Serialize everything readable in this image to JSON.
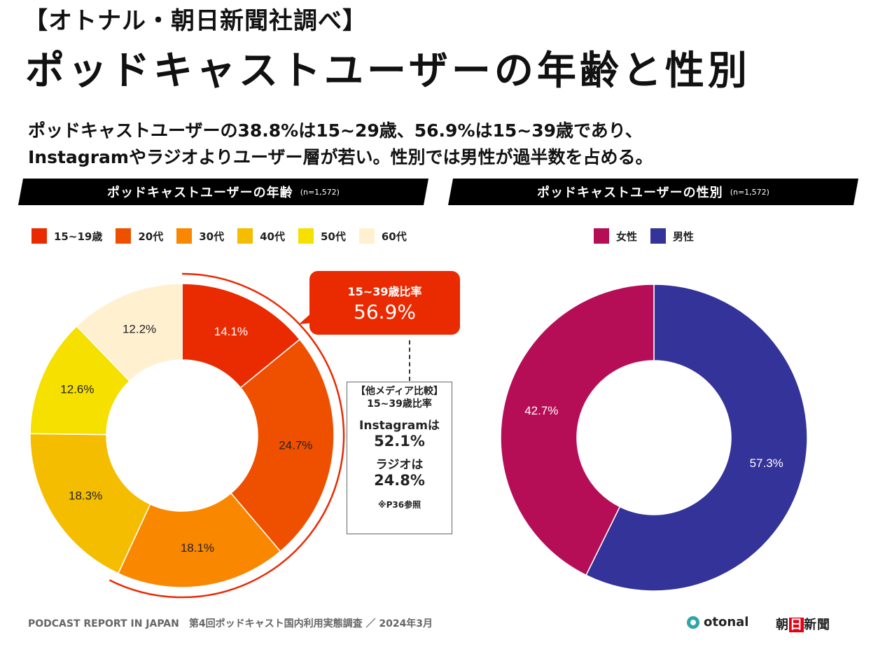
{
  "header": {
    "source_tag": "【オトナル・朝日新聞社調べ】",
    "title": "ポッドキャストユーザーの年齢と性別",
    "summary_line1": "ポッドキャストユーザーの38.8%は15~29歳、56.9%は15~39歳であり、",
    "summary_line2": "Instagramやラジオよりユーザー層が若い。性別では男性が過半数を占める。"
  },
  "age_section": {
    "title": "ポッドキャストユーザーの年齢",
    "sample": "(n=1,572)",
    "callout": {
      "label": "15~39歳比率",
      "value": "56.9%",
      "color": "#ea2a00"
    },
    "compare": {
      "heading1": "【他メディア比較】",
      "heading2": "15~39歳比率",
      "instagram_label": "Instagramは",
      "instagram_value": "52.1%",
      "radio_label": "ラジオは",
      "radio_value": "24.8%",
      "note": "※P36参照"
    }
  },
  "gender_section": {
    "title": "ポッドキャストユーザーの性別",
    "sample": "(n=1,572)"
  },
  "chart_data": [
    {
      "type": "pie",
      "variant": "donut",
      "title": "ポッドキャストユーザーの年齢 (n=1,572)",
      "categories": [
        "15~19歳",
        "20代",
        "30代",
        "40代",
        "50代",
        "60代"
      ],
      "values": [
        14.1,
        24.7,
        18.1,
        18.3,
        12.6,
        12.2
      ],
      "labels": [
        "14.1%",
        "24.7%",
        "18.1%",
        "18.3%",
        "12.6%",
        "12.2%"
      ],
      "colors": [
        "#ea2a00",
        "#ee5000",
        "#f98700",
        "#f5bd00",
        "#f5e000",
        "#fff0d0"
      ],
      "label_colors": [
        "#ffffff",
        "#222222",
        "#222222",
        "#222222",
        "#222222",
        "#222222"
      ],
      "start": "top",
      "direction": "clockwise",
      "legend": "top-left",
      "highlight": {
        "categories": [
          "15~19歳",
          "20代",
          "30代"
        ],
        "total": 56.9,
        "color": "#ea2a00"
      }
    },
    {
      "type": "pie",
      "variant": "donut",
      "title": "ポッドキャストユーザーの性別 (n=1,572)",
      "categories": [
        "男性",
        "女性"
      ],
      "values": [
        57.3,
        42.7
      ],
      "labels": [
        "57.3%",
        "42.7%"
      ],
      "colors": [
        "#333399",
        "#b50e56"
      ],
      "label_colors": [
        "#ffffff",
        "#ffffff"
      ],
      "legend_order": [
        "女性",
        "男性"
      ],
      "start": "top",
      "direction": "clockwise",
      "legend": "top-center"
    }
  ],
  "footer": {
    "text": "PODCAST REPORT IN JAPAN　第4回ポッドキャスト国内利用実態調査 ／ 2024年3月",
    "logo_otonal": "otonal",
    "logo_asahi_1": "朝",
    "logo_asahi_2": "日",
    "logo_asahi_3": "新聞"
  }
}
